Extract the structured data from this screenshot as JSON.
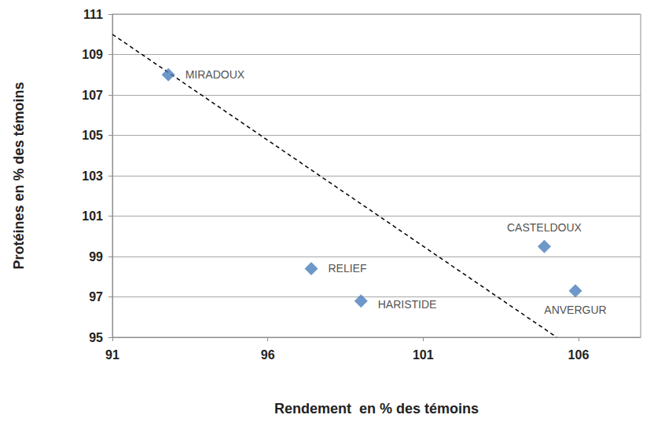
{
  "chart_data": {
    "type": "scatter",
    "x_label": "Rendement  en % des témoins",
    "y_label": "Protéines en % des témoins",
    "xlim": [
      91,
      108
    ],
    "xticks": [
      91,
      96,
      101,
      106
    ],
    "ylim": [
      95,
      111
    ],
    "yticks": [
      95,
      97,
      99,
      101,
      103,
      105,
      107,
      109,
      111
    ],
    "grid": "y",
    "series": [
      {
        "type": "scatter",
        "marker": "diamond",
        "color": "#4a7ebb",
        "x": [
          92.8,
          97.4,
          99.0,
          104.9,
          105.9
        ],
        "values": [
          108.0,
          98.4,
          96.8,
          99.5,
          97.3
        ],
        "labels": [
          "MIRADOUX",
          "RELIEF",
          "HARISTIDE",
          "CASTELDOUX",
          "ANVERGUR"
        ]
      },
      {
        "type": "line",
        "line_style": "dashed",
        "color": "#000000",
        "x": [
          91,
          105.3
        ],
        "values": [
          110,
          95
        ]
      }
    ]
  }
}
